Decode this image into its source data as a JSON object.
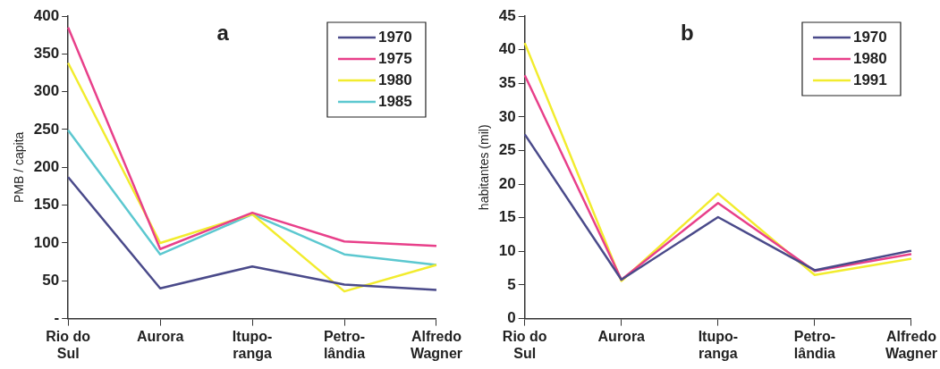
{
  "chart_data": [
    {
      "type": "line",
      "title": "a",
      "ylabel": "PMB / capita",
      "categories": [
        "Rio do Sul",
        "Aurora",
        "Itupo-ranga",
        "Petro-lândia",
        "Alfredo Wagner"
      ],
      "series": [
        {
          "name": "1970",
          "color": "#4a4a8a",
          "values": [
            187,
            40,
            69,
            45,
            38
          ]
        },
        {
          "name": "1975",
          "color": "#e8408a",
          "values": [
            385,
            92,
            140,
            102,
            96
          ]
        },
        {
          "name": "1980",
          "color": "#f2ec2e",
          "values": [
            338,
            100,
            138,
            36,
            71
          ]
        },
        {
          "name": "1985",
          "color": "#5cc8d0",
          "values": [
            249,
            85,
            138,
            85,
            71
          ]
        }
      ],
      "ylim": [
        0,
        400
      ],
      "yticks": [
        {
          "value": 0,
          "label": "-"
        },
        50,
        100,
        150,
        200,
        250,
        300,
        350,
        400
      ],
      "grid": false,
      "legend": "top right",
      "marker": "none"
    },
    {
      "type": "line",
      "title": "b",
      "ylabel": "habitantes (mil)",
      "categories": [
        "Rio do Sul",
        "Aurora",
        "Itupo-ranga",
        "Petro-lândia",
        "Alfredo Wagner"
      ],
      "series": [
        {
          "name": "1970",
          "color": "#4a4a8a",
          "values": [
            27.4,
            5.8,
            15.1,
            7.2,
            10.1
          ]
        },
        {
          "name": "1980",
          "color": "#e8408a",
          "values": [
            36.2,
            5.8,
            17.2,
            7.1,
            9.6
          ]
        },
        {
          "name": "1991",
          "color": "#f2ec2e",
          "values": [
            41,
            5.6,
            18.6,
            6.5,
            8.9
          ]
        }
      ],
      "ylim": [
        0,
        45
      ],
      "yticks": [
        0,
        5,
        10,
        15,
        20,
        25,
        30,
        35,
        40,
        45
      ],
      "grid": false,
      "legend": "top right",
      "marker": "none"
    }
  ]
}
